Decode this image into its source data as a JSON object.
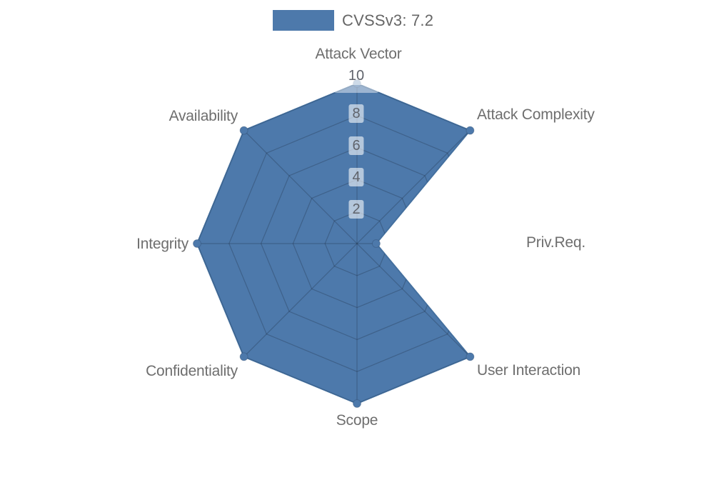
{
  "legend": {
    "label": "CVSSv3: 7.2"
  },
  "chart_data": {
    "type": "radar",
    "title": "CVSSv3: 7.2",
    "legend_position": "top-center",
    "axis_order": "clockwise-from-top",
    "axes": [
      {
        "label": "Attack Vector",
        "value": 10
      },
      {
        "label": "Attack Complexity",
        "value": 10
      },
      {
        "label": "Priv.Req.",
        "value": 1.2
      },
      {
        "label": "User Interaction",
        "value": 10
      },
      {
        "label": "Scope",
        "value": 10
      },
      {
        "label": "Confidentiality",
        "value": 10
      },
      {
        "label": "Integrity",
        "value": 10
      },
      {
        "label": "Availability",
        "value": 10
      }
    ],
    "scale": {
      "min": 0,
      "max": 10,
      "ticks": [
        2,
        4,
        6,
        8,
        10
      ],
      "tick_labels": [
        "2",
        "4",
        "6",
        "8",
        "10"
      ]
    },
    "grid": "polygon-rings-and-spokes-visible-only-inside-filled-area",
    "colors": {
      "series": "#4d79ab",
      "series_edge": "#44709f",
      "dot_edge": "rgba(30,50,80,0.25)",
      "grid_line": "rgba(25,35,55,0.28)",
      "axis_label": "#6e6e6e",
      "tick_text": "#5f636b",
      "tick_box": "rgba(255,255,255,0.58)",
      "background": "#ffffff"
    }
  }
}
